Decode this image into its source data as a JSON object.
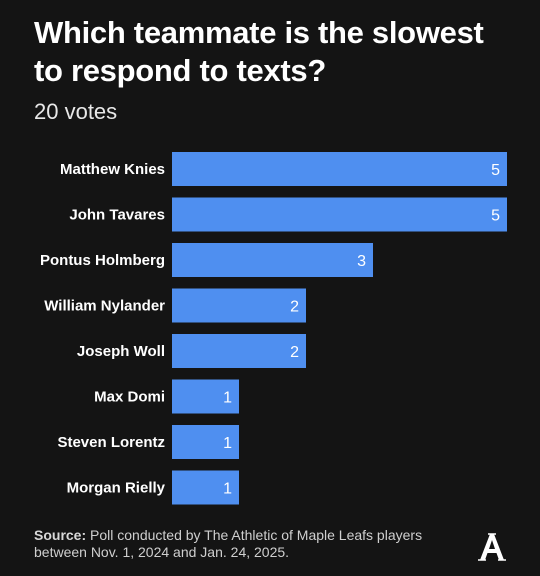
{
  "title": "Which teammate is the slowest to respond to texts?",
  "subtitle": "20 votes",
  "source_label": "Source:",
  "source_text": "Poll conducted by The Athletic of Maple Leafs players between Nov. 1, 2024 and Jan. 24, 2025.",
  "logo_icon": "athletic-a-logo",
  "colors": {
    "background": "#141414",
    "bar": "#4f8ff0",
    "text": "#ffffff"
  },
  "chart_data": {
    "type": "bar",
    "orientation": "horizontal",
    "title": "Which teammate is the slowest to respond to texts?",
    "subtitle": "20 votes",
    "categories": [
      "Matthew Knies",
      "John Tavares",
      "Pontus Holmberg",
      "William Nylander",
      "Joseph Woll",
      "Max Domi",
      "Steven Lorentz",
      "Morgan Rielly"
    ],
    "values": [
      5,
      5,
      3,
      2,
      2,
      1,
      1,
      1
    ],
    "xlim": [
      0,
      5
    ],
    "grid": false,
    "legend": "none"
  }
}
